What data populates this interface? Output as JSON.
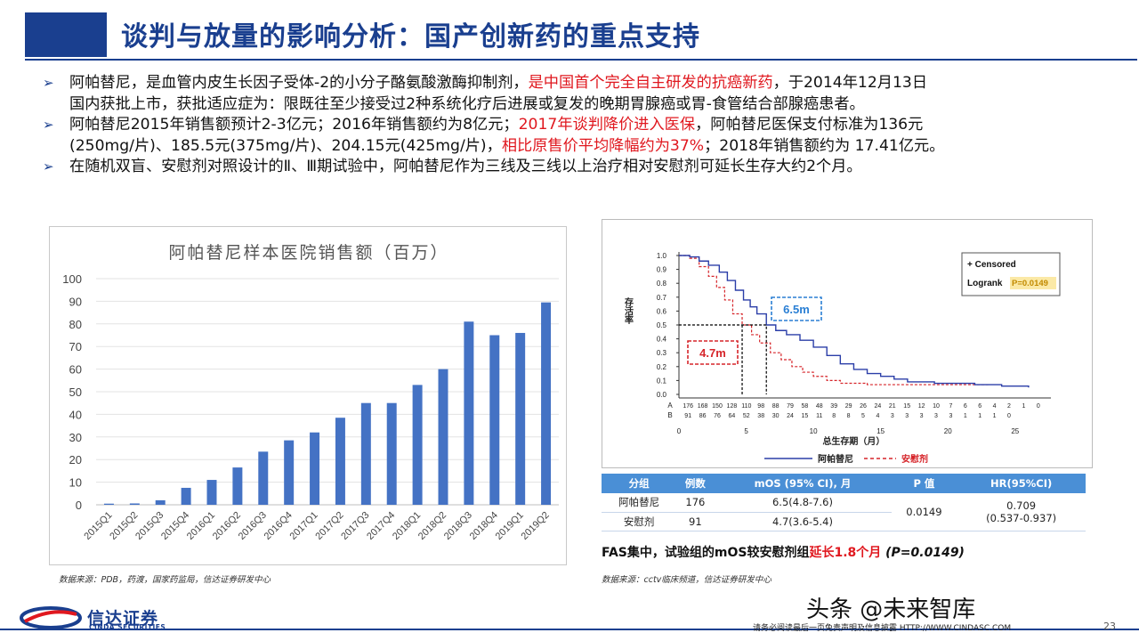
{
  "title": "谈判与放量的影响分析：国产创新药的重点支持",
  "bullets": [
    {
      "lines": [
        [
          {
            "t": "阿帕替尼，是血管内皮生长因子受体-2的小分子酪氨酸激酶抑制剂，"
          },
          {
            "t": "是中国首个完全自主研发的抗癌新药",
            "hl": true
          },
          {
            "t": "，于2014年12月13日"
          }
        ],
        [
          {
            "t": "国内获批上市，获批适应症为：限既往至少接受过2种系统化疗后进展或复发的晚期胃腺癌或胃-食管结合部腺癌患者。"
          }
        ]
      ]
    },
    {
      "lines": [
        [
          {
            "t": "阿帕替尼2015年销售额预计2-3亿元；2016年销售额约为8亿元；"
          },
          {
            "t": "2017年谈判降价进入医保",
            "hl": true
          },
          {
            "t": "，阿帕替尼医保支付标准为136元"
          }
        ],
        [
          {
            "t": "(250mg/片)、185.5元(375mg/片)、204.15元(425mg/片)，"
          },
          {
            "t": "相比原售价平均降幅约为37%",
            "hl": true
          },
          {
            "t": "；2018年销售额约为 17.41亿元。"
          }
        ]
      ]
    },
    {
      "lines": [
        [
          {
            "t": "在随机双盲、安慰剂对照设计的Ⅱ、Ⅲ期试验中，阿帕替尼作为三线及三线以上治疗相对安慰剂可延长生存大约2个月。"
          }
        ]
      ]
    }
  ],
  "chart_data": {
    "type": "bar",
    "title": "阿帕替尼样本医院销售额（百万）",
    "categories": [
      "2015Q1",
      "2015Q2",
      "2015Q3",
      "2015Q4",
      "2016Q1",
      "2016Q2",
      "2016Q3",
      "2016Q4",
      "2017Q1",
      "2017Q2",
      "2017Q3",
      "2017Q4",
      "2018Q1",
      "2018Q2",
      "2018Q3",
      "2018Q4",
      "2019Q1",
      "2019Q2"
    ],
    "values": [
      0.5,
      0.6,
      2,
      7.5,
      11,
      16.5,
      23.5,
      28.5,
      32,
      38.5,
      45,
      45,
      53,
      60,
      81,
      75,
      76,
      89.5
    ],
    "ylim": [
      0,
      100
    ],
    "yticks": [
      0,
      10,
      20,
      30,
      40,
      50,
      60,
      70,
      80,
      90,
      100
    ],
    "color": "#4472c4",
    "grid": true,
    "xlabel": "",
    "ylabel": ""
  },
  "chart_source": "数据来源：PDB，药渡，国家药监局，信达证券研发中心",
  "km_plot": {
    "ylabel": "存活率",
    "xlabel": "总生存期（月）",
    "y_ticks": [
      "1.0",
      "0.9",
      "0.8",
      "0.7",
      "0.6",
      "0.5",
      "0.4",
      "0.3",
      "0.2",
      "0.1",
      "0.0"
    ],
    "x_ticks": [
      "0",
      "5",
      "10",
      "15",
      "20",
      "25"
    ],
    "legend_censored": "+ Censored",
    "legend_logrank": "Logrank",
    "legend_p": "P=0.0149",
    "annot_a": "6.5m",
    "annot_b": "4.7m",
    "risk_a_label": "A",
    "risk_b_label": "B",
    "risk_a": [
      "176",
      "168",
      "150",
      "128",
      "110",
      "98",
      "88",
      "79",
      "58",
      "48",
      "39",
      "29",
      "26",
      "24",
      "21",
      "15",
      "12",
      "10",
      "7",
      "6",
      "6",
      "4",
      "2",
      "1",
      "0"
    ],
    "risk_b": [
      "91",
      "86",
      "76",
      "64",
      "52",
      "38",
      "30",
      "24",
      "15",
      "11",
      "8",
      "8",
      "5",
      "4",
      "3",
      "3",
      "3",
      "3",
      "3",
      "1",
      "1",
      "1",
      "0"
    ],
    "legend_drug": "阿帕替尼",
    "legend_placebo": "安慰剂",
    "color_drug": "#2b3ea8",
    "color_placebo": "#d6252a"
  },
  "table": {
    "headers": [
      "分组",
      "例数",
      "mOS (95% CI), 月",
      "P 值",
      "HR(95%CI)"
    ],
    "rows": [
      {
        "group": "阿帕替尼",
        "n": "176",
        "mos": "6.5(4.8-7.6)"
      },
      {
        "group": "安慰剂",
        "n": "91",
        "mos": "4.7(3.6-5.4)"
      }
    ],
    "p_value": "0.0149",
    "hr": "0.709",
    "hr_ci": "(0.537-0.937)"
  },
  "fas": {
    "prefix": "FAS集中，试验组的mOS较安慰剂组",
    "red": "延长1.8个月",
    "suffix": "(P=0.0149)"
  },
  "km_source": "数据来源：cctv临床频道，信达证券研发中心",
  "footer": {
    "logo_cn": "信达证券",
    "logo_en": "CINDA SECURITIES",
    "watermark": "头条 @未来智库",
    "disclaimer": "请务必阅读最后一页免责声明及信息披露  HTTP://WWW.CINDASC.COM",
    "page": "23"
  }
}
